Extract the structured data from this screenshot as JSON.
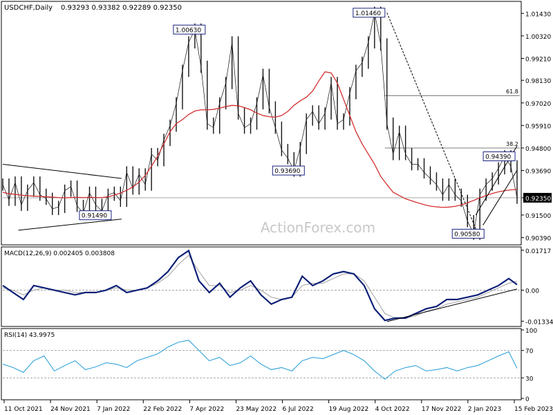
{
  "header": {
    "symbol_tf": "USDCHF,Daily",
    "ohlc": "0.93293 0.93382 0.92289 0.92350"
  },
  "watermark": "ActionForex.com",
  "colors": {
    "bars": "#111111",
    "sma": "#d32f2f",
    "macd_main": "#0b1f77",
    "macd_signal": "#a0a0a0",
    "rsi": "#1f9bd7",
    "grid": "#000000",
    "priceHighlight": "#000000"
  },
  "chart_data": [
    {
      "type": "line",
      "title": "USDCHF,Daily",
      "x_tick_labels": [
        "11 Oct 2021",
        "24 Nov 2021",
        "7 Jan 2022",
        "22 Feb 2022",
        "7 Apr 2022",
        "23 May 2022",
        "6 Jul 2022",
        "19 Aug 2022",
        "4 Oct 2022",
        "17 Nov 2022",
        "2 Jan 2023",
        "15 Feb 2023"
      ],
      "ylim": [
        0.901,
        1.0195
      ],
      "y_ticks": [
        1.0143,
        1.0032,
        0.9921,
        0.9813,
        0.9702,
        0.9591,
        0.948,
        0.9369,
        0.9235,
        0.915,
        0.9039
      ],
      "last_price": 0.9235,
      "series": [
        {
          "kind": "price",
          "x": [
            0,
            6,
            12,
            18,
            24,
            30,
            36,
            42,
            48,
            54,
            60,
            66,
            72,
            78,
            84,
            90,
            96,
            102,
            108,
            114,
            120,
            126,
            132,
            138,
            144,
            150,
            156,
            162,
            168,
            174,
            180,
            186,
            192,
            198,
            204,
            210,
            216,
            222,
            228,
            234,
            240,
            246,
            252,
            258,
            264,
            270,
            276,
            282,
            288,
            294,
            300,
            306,
            312,
            318,
            324,
            330,
            336,
            342,
            348,
            354,
            360,
            366,
            372,
            378,
            384,
            390,
            396,
            402,
            408,
            414,
            420,
            426,
            432,
            438,
            444,
            450,
            456,
            462,
            468,
            474,
            480,
            486,
            492,
            498
          ],
          "values": [
            0.93,
            0.9225,
            0.931,
            0.92,
            0.927,
            0.931,
            0.925,
            0.923,
            0.918,
            0.919,
            0.927,
            0.929,
            0.9195,
            0.916,
            0.926,
            0.92,
            0.917,
            0.925,
            0.926,
            0.922,
            0.936,
            0.928,
            0.935,
            0.93,
            0.945,
            0.942,
            0.952,
            0.959,
            0.97,
            0.986,
            1.0,
            1.0063,
            0.988,
            0.96,
            0.958,
            0.97,
            0.98,
            1.0,
            0.965,
            0.958,
            0.96,
            0.97,
            0.984,
            0.968,
            0.958,
            0.947,
            0.943,
            0.9369,
            0.948,
            0.962,
            0.966,
            0.96,
            0.965,
            0.98,
            0.96,
            0.962,
            0.975,
            0.986,
            0.99,
            1.0,
            1.0146,
            0.999,
            0.96,
            0.945,
            0.956,
            0.945,
            0.94,
            0.94,
            0.936,
            0.933,
            0.93,
            0.925,
            0.93,
            0.925,
            0.922,
            0.912,
            0.9058,
            0.925,
            0.93,
            0.933,
            0.938,
            0.9439,
            0.939,
            0.9235
          ]
        },
        {
          "kind": "sma",
          "x": [
            0,
            6,
            12,
            18,
            24,
            30,
            36,
            42,
            48,
            54,
            60,
            66,
            72,
            78,
            84,
            90,
            96,
            102,
            108,
            114,
            120,
            126,
            132,
            138,
            144,
            150,
            156,
            162,
            168,
            174,
            180,
            186,
            192,
            198,
            204,
            210,
            216,
            222,
            228,
            234,
            240,
            246,
            252,
            258,
            264,
            270,
            276,
            282,
            288,
            294,
            300,
            306,
            312,
            318,
            324,
            330,
            336,
            342,
            348,
            354,
            360,
            366,
            372,
            378,
            384,
            390,
            396,
            402,
            408,
            414,
            420,
            426,
            432,
            438,
            444,
            450,
            456,
            462,
            468,
            474,
            480,
            486,
            492,
            498
          ],
          "values": [
            0.9262,
            0.9255,
            0.9252,
            0.9248,
            0.9245,
            0.9243,
            0.9242,
            0.924,
            0.9238,
            0.9236,
            0.9235,
            0.9236,
            0.9237,
            0.9236,
            0.9237,
            0.9236,
            0.9236,
            0.924,
            0.9248,
            0.9258,
            0.9272,
            0.9288,
            0.9312,
            0.9345,
            0.939,
            0.944,
            0.95,
            0.956,
            0.96,
            0.962,
            0.9645,
            0.9662,
            0.9668,
            0.9668,
            0.967,
            0.9676,
            0.9684,
            0.969,
            0.9688,
            0.9679,
            0.9668,
            0.9652,
            0.964,
            0.9634,
            0.9632,
            0.964,
            0.966,
            0.969,
            0.9712,
            0.973,
            0.976,
            0.981,
            0.9855,
            0.985,
            0.98,
            0.972,
            0.964,
            0.956,
            0.95,
            0.945,
            0.94,
            0.934,
            0.93,
            0.9262,
            0.9246,
            0.923,
            0.922,
            0.921,
            0.9201,
            0.9194,
            0.919,
            0.9188,
            0.9189,
            0.9193,
            0.92,
            0.921,
            0.9222,
            0.9235,
            0.9246,
            0.9256,
            0.9264,
            0.927,
            0.9274,
            0.9276
          ]
        }
      ],
      "annotations": [
        {
          "text": "1.00630",
          "x": 186,
          "y": 1.0063
        },
        {
          "text": "1.01460",
          "x": 360,
          "y": 1.0146
        },
        {
          "text": "0.91490",
          "x": 95,
          "y": 0.9149
        },
        {
          "text": "0.93690",
          "x": 282,
          "y": 0.9369
        },
        {
          "text": "0.94390",
          "x": 486,
          "y": 0.9439
        },
        {
          "text": "0.90580",
          "x": 456,
          "y": 0.9058
        }
      ],
      "fib_levels": [
        {
          "label": "61.8",
          "value": 0.9738
        },
        {
          "label": "38.2",
          "value": 0.948
        }
      ]
    },
    {
      "type": "line",
      "title": "MACD(12,26,9) 0.002405 0.003808",
      "ylim": [
        -0.015,
        0.018
      ],
      "y_ticks": [
        0.01717,
        0.0,
        -0.01334
      ],
      "series": [
        {
          "name": "MACD",
          "x": [
            0,
            10,
            20,
            30,
            40,
            50,
            60,
            70,
            80,
            90,
            100,
            110,
            120,
            130,
            140,
            150,
            160,
            170,
            180,
            190,
            200,
            210,
            220,
            230,
            240,
            250,
            260,
            270,
            280,
            290,
            300,
            310,
            320,
            330,
            340,
            350,
            360,
            370,
            380,
            390,
            400,
            410,
            420,
            430,
            440,
            450,
            460,
            470,
            480,
            490,
            498
          ],
          "values": [
            0.002,
            -0.001,
            -0.004,
            0.002,
            0.001,
            0.0,
            -0.001,
            -0.002,
            -0.001,
            -0.001,
            0.0,
            0.002,
            -0.001,
            0.0,
            0.001,
            0.004,
            0.008,
            0.014,
            0.017,
            0.004,
            -0.001,
            0.003,
            -0.003,
            0.001,
            0.004,
            -0.002,
            -0.006,
            -0.004,
            -0.003,
            0.006,
            0.002,
            0.004,
            0.007,
            0.008,
            0.007,
            0.002,
            -0.008,
            -0.013,
            -0.012,
            -0.012,
            -0.01,
            -0.008,
            -0.007,
            -0.004,
            -0.004,
            -0.003,
            -0.002,
            0.0,
            0.002,
            0.005,
            0.0024
          ]
        },
        {
          "name": "Signal",
          "x": [
            0,
            10,
            20,
            30,
            40,
            50,
            60,
            70,
            80,
            90,
            100,
            110,
            120,
            130,
            140,
            150,
            160,
            170,
            180,
            190,
            200,
            210,
            220,
            230,
            240,
            250,
            260,
            270,
            280,
            290,
            300,
            310,
            320,
            330,
            340,
            350,
            360,
            370,
            380,
            390,
            400,
            410,
            420,
            430,
            440,
            450,
            460,
            470,
            480,
            490,
            498
          ],
          "values": [
            0.001,
            0.0,
            -0.002,
            0.0,
            0.001,
            0.0,
            0.0,
            -0.001,
            -0.001,
            -0.001,
            0.0,
            0.001,
            0.0,
            0.0,
            0.001,
            0.003,
            0.006,
            0.011,
            0.015,
            0.008,
            0.002,
            0.002,
            -0.001,
            0.0,
            0.002,
            0.0,
            -0.003,
            -0.004,
            -0.003,
            0.002,
            0.003,
            0.003,
            0.005,
            0.007,
            0.007,
            0.004,
            -0.003,
            -0.01,
            -0.012,
            -0.012,
            -0.011,
            -0.009,
            -0.008,
            -0.006,
            -0.005,
            -0.004,
            -0.003,
            -0.001,
            0.001,
            0.003,
            0.0038
          ]
        }
      ]
    },
    {
      "type": "line",
      "title": "RSI(14) 43.9975",
      "ylim": [
        0,
        100
      ],
      "y_ticks": [
        100,
        70,
        30,
        0
      ],
      "series": [
        {
          "name": "RSI",
          "x": [
            0,
            10,
            20,
            30,
            40,
            50,
            60,
            70,
            80,
            90,
            100,
            110,
            120,
            130,
            140,
            150,
            160,
            170,
            180,
            190,
            200,
            210,
            220,
            230,
            240,
            250,
            260,
            270,
            280,
            290,
            300,
            310,
            320,
            330,
            340,
            350,
            360,
            370,
            380,
            390,
            400,
            410,
            420,
            430,
            440,
            450,
            460,
            470,
            480,
            490,
            498
          ],
          "values": [
            50,
            45,
            38,
            55,
            62,
            40,
            48,
            55,
            42,
            46,
            52,
            50,
            45,
            55,
            60,
            65,
            75,
            82,
            85,
            70,
            55,
            60,
            48,
            52,
            62,
            50,
            42,
            45,
            40,
            55,
            60,
            58,
            64,
            70,
            64,
            55,
            40,
            28,
            40,
            45,
            48,
            40,
            42,
            45,
            40,
            45,
            48,
            55,
            62,
            68,
            44
          ]
        }
      ],
      "levels": [
        70,
        30
      ]
    }
  ]
}
